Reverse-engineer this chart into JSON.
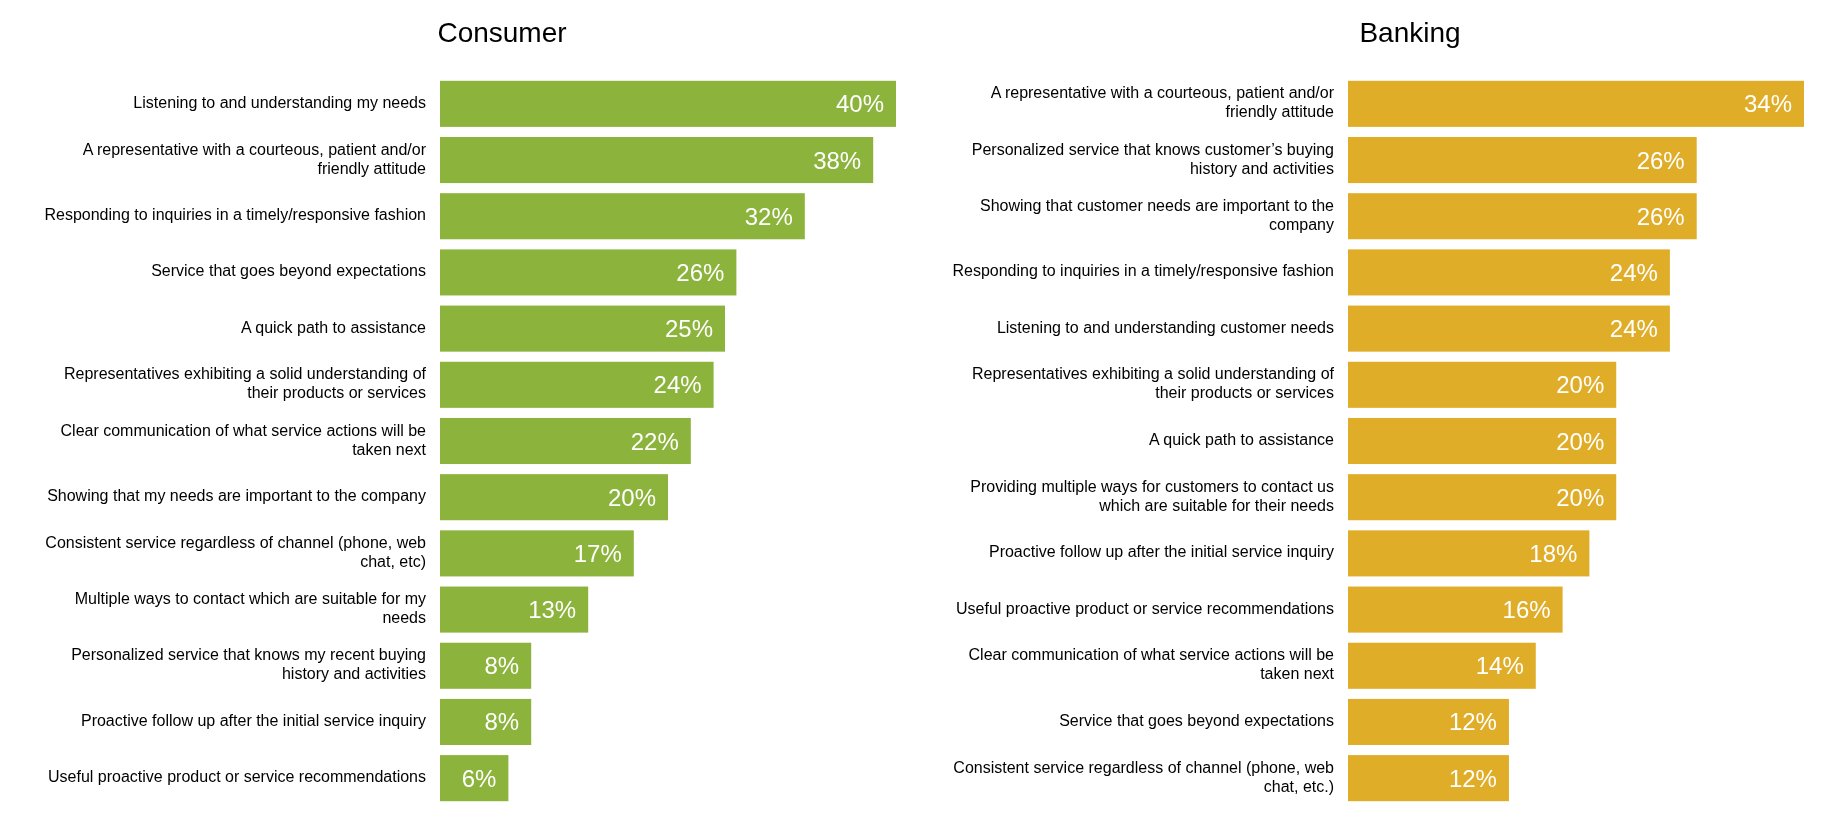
{
  "chart_data": [
    {
      "type": "bar",
      "orientation": "horizontal",
      "title": "Consumer",
      "value_labels": [
        "40%",
        "38%",
        "32%",
        "26%",
        "25%",
        "24%",
        "22%",
        "20%",
        "17%",
        "13%",
        "8%",
        "8%",
        "6%"
      ],
      "color": "#8cb33c",
      "categories": [
        "Listening to and understanding my needs",
        "A representative with a courteous, patient and/or friendly attitude",
        "Responding to inquiries in a timely/responsive fashion",
        "Service that goes beyond expectations",
        "A quick path to assistance",
        "Representatives exhibiting a solid understanding of their products or services",
        "Clear communication of what service actions will be taken next",
        "Showing that my needs are important to the company",
        "Consistent service regardless of channel (phone, web chat, etc)",
        "Multiple ways to contact which are suitable for my needs",
        "Personalized service that knows my recent buying history and activities",
        "Proactive follow up after the initial service inquiry",
        "Useful proactive product or service recommendations"
      ],
      "values": [
        40,
        38,
        32,
        26,
        25,
        24,
        22,
        20,
        17,
        13,
        8,
        8,
        6
      ]
    },
    {
      "type": "bar",
      "orientation": "horizontal",
      "title": "Banking",
      "value_labels": [
        "34%",
        "26%",
        "26%",
        "24%",
        "24%",
        "20%",
        "20%",
        "20%",
        "18%",
        "16%",
        "14%",
        "12%",
        "12%"
      ],
      "color": "#e0ad29",
      "categories": [
        "A representative with a courteous, patient and/or friendly attitude",
        "Personalized service that knows customer’s buying history and activities",
        "Showing that customer needs are important to the company",
        "Responding to inquiries in a timely/responsive fashion",
        "Listening to and understanding customer needs",
        "Representatives exhibiting a solid understanding of their products or services",
        "A quick path to assistance",
        "Providing multiple ways for customers to contact us which are suitable for their needs",
        "Proactive follow up after the initial service inquiry",
        "Useful proactive product or service recommendations",
        "Clear communication of what service actions will be taken next",
        "Service that goes beyond expectations",
        "Consistent service regardless of channel (phone, web chat, etc.)"
      ],
      "values": [
        34,
        26,
        26,
        24,
        24,
        20,
        20,
        20,
        18,
        16,
        14,
        12,
        12
      ]
    }
  ]
}
